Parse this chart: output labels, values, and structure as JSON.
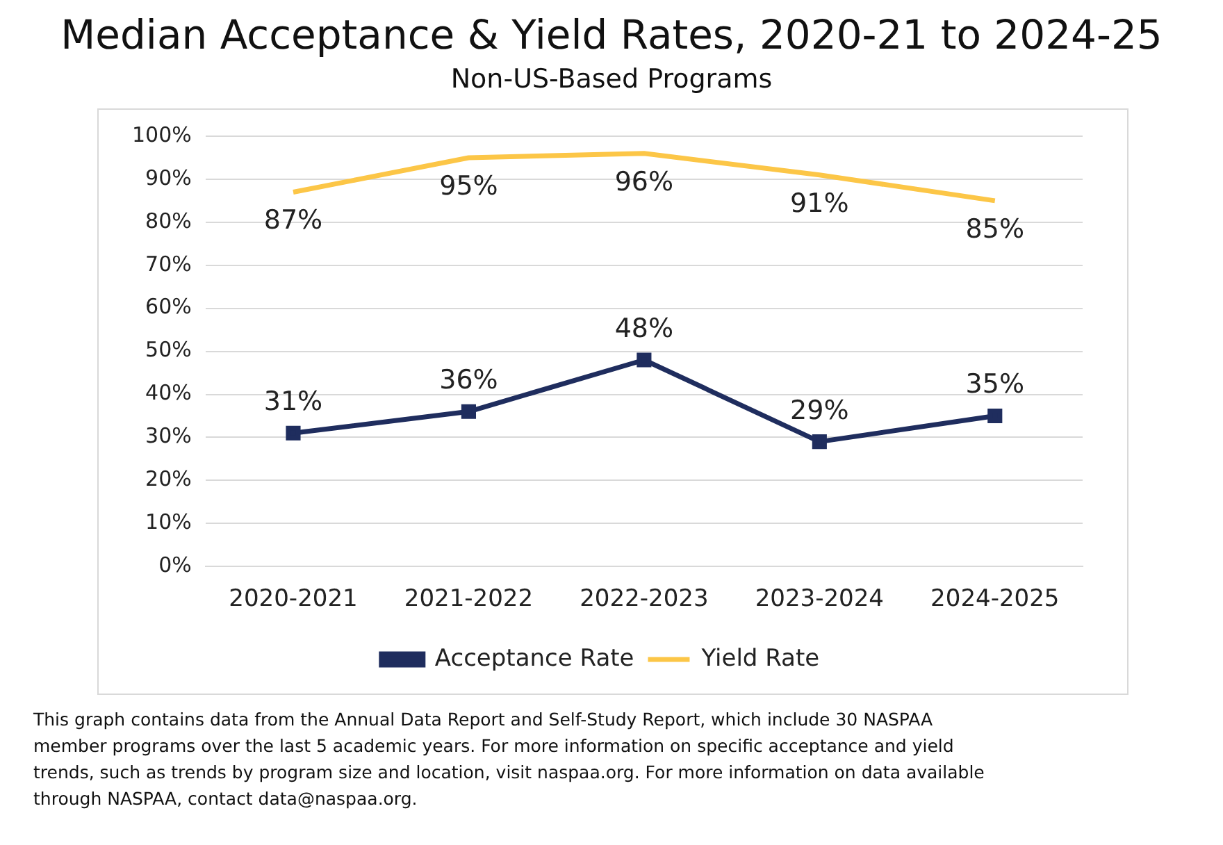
{
  "chart_data": {
    "type": "line",
    "title": "Median Acceptance & Yield Rates, 2020-21 to 2024-25",
    "subtitle": "Non-US-Based Programs",
    "categories": [
      "2020-2021",
      "2021-2022",
      "2022-2023",
      "2023-2024",
      "2024-2025"
    ],
    "series": [
      {
        "name": "Acceptance Rate",
        "color": "#1f2d5e",
        "values": [
          31,
          36,
          48,
          29,
          35
        ],
        "value_labels": [
          "31%",
          "36%",
          "48%",
          "29%",
          "35%"
        ],
        "marker": "square"
      },
      {
        "name": "Yield Rate",
        "color": "#fcc647",
        "values": [
          87,
          95,
          96,
          91,
          85
        ],
        "value_labels": [
          "87%",
          "95%",
          "96%",
          "91%",
          "85%"
        ],
        "marker": "none"
      }
    ],
    "ylim": [
      0,
      100
    ],
    "yticks": [
      {
        "value": 0,
        "label": "0%"
      },
      {
        "value": 10,
        "label": "10%"
      },
      {
        "value": 20,
        "label": "20%"
      },
      {
        "value": 30,
        "label": "30%"
      },
      {
        "value": 40,
        "label": "40%"
      },
      {
        "value": 50,
        "label": "50%"
      },
      {
        "value": 60,
        "label": "60%"
      },
      {
        "value": 70,
        "label": "70%"
      },
      {
        "value": 80,
        "label": "80%"
      },
      {
        "value": 90,
        "label": "90%"
      },
      {
        "value": 100,
        "label": "100%"
      }
    ],
    "grid": "y",
    "legend": "bottom",
    "annotations": [
      "This graph contains data from the Annual Data Report and Self-Study Report, which include 30 NASPAA member programs over the last 5 academic years. For more information on specific acceptance and yield trends, such as trends by program size and location, visit naspaa.org. For more information on data available through NASPAA, contact data@naspaa.org."
    ]
  }
}
